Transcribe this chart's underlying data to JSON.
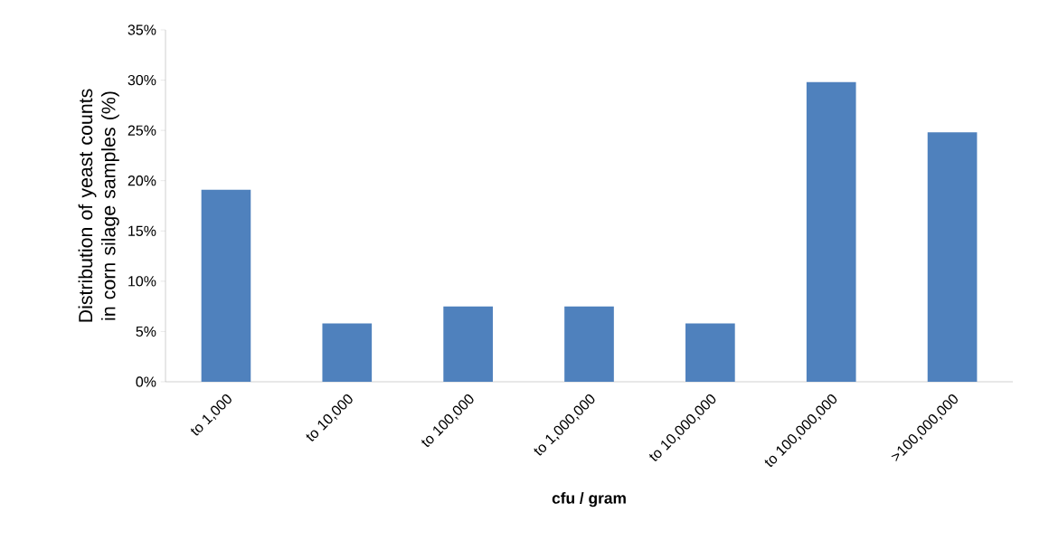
{
  "chart_data": {
    "type": "bar",
    "xlabel": "cfu / gram",
    "ylabel": "Distribution of yeast counts in corn silage samples (%)",
    "categories": [
      "to 1,000",
      "to 10,000",
      "to 100,000",
      "to 1,000,000",
      "to 10,000,000",
      "to 100,000,000",
      ">100,000,000"
    ],
    "values": [
      19.1,
      5.8,
      7.5,
      7.5,
      5.8,
      29.8,
      24.8
    ],
    "color": "#4f81bd",
    "ylim": [
      0,
      35
    ],
    "yticks": [
      {
        "value": 0,
        "label": "0%"
      },
      {
        "value": 5,
        "label": "5%"
      },
      {
        "value": 10,
        "label": "10%"
      },
      {
        "value": 15,
        "label": "15%"
      },
      {
        "value": 20,
        "label": "20%"
      },
      {
        "value": 25,
        "label": "25%"
      },
      {
        "value": 30,
        "label": "30%"
      },
      {
        "value": 35,
        "label": "35%"
      }
    ],
    "grid": false
  }
}
